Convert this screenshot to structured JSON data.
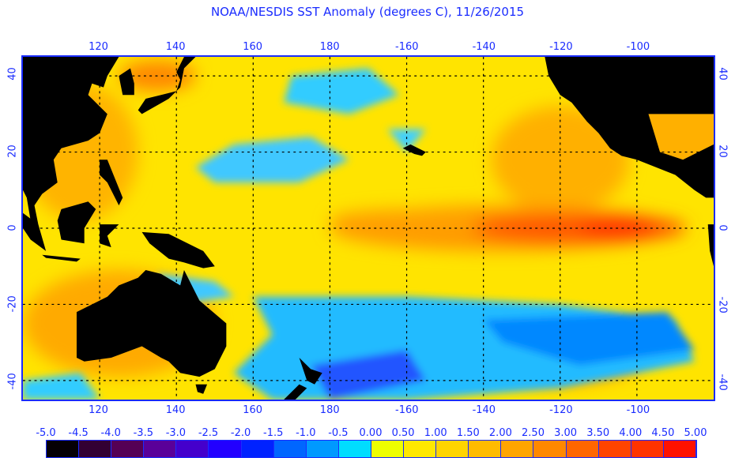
{
  "title": "NOAA/NESDIS SST Anomaly (degrees C), 11/26/2015",
  "lon_ticks": [
    {
      "lon": 120,
      "label": "120"
    },
    {
      "lon": 140,
      "label": "140"
    },
    {
      "lon": 160,
      "label": "160"
    },
    {
      "lon": 180,
      "label": "180"
    },
    {
      "lon": 200,
      "label": "-160"
    },
    {
      "lon": 220,
      "label": "-140"
    },
    {
      "lon": 240,
      "label": "-120"
    },
    {
      "lon": 260,
      "label": "-100"
    }
  ],
  "lat_ticks": [
    {
      "lat": 40,
      "label": "40"
    },
    {
      "lat": 20,
      "label": "20"
    },
    {
      "lat": 0,
      "label": "0"
    },
    {
      "lat": -20,
      "label": "-20"
    },
    {
      "lat": -40,
      "label": "-40"
    }
  ],
  "lon_range": [
    100,
    280
  ],
  "lat_range": [
    -45,
    45
  ],
  "colorbar": {
    "labels": [
      "-5.0",
      "-4.5",
      "-4.0",
      "-3.5",
      "-3.0",
      "-2.5",
      "-2.0",
      "-1.5",
      "-1.0",
      "-0.5",
      "0.00",
      "0.50",
      "1.00",
      "1.50",
      "2.00",
      "2.50",
      "3.00",
      "3.50",
      "4.00",
      "4.50",
      "5.00"
    ],
    "colors": [
      "#050005",
      "#330033",
      "#550055",
      "#5a0099",
      "#4400cc",
      "#2200ff",
      "#0022ff",
      "#0066ff",
      "#0099ff",
      "#00ddff",
      "#eeff00",
      "#ffe800",
      "#ffd400",
      "#ffbb00",
      "#ffa500",
      "#ff8800",
      "#ff6600",
      "#ff4400",
      "#ff3300",
      "#ff1100"
    ]
  }
}
